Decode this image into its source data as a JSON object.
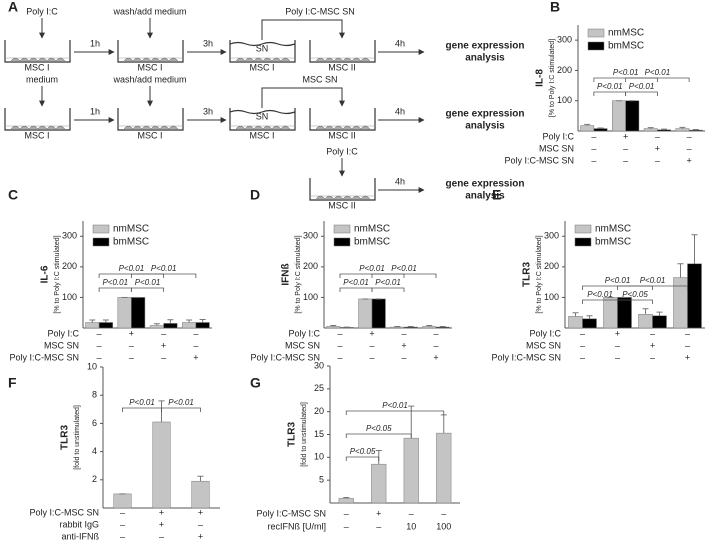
{
  "panel_labels": [
    "A",
    "B",
    "C",
    "D",
    "E",
    "F",
    "G"
  ],
  "diagram": {
    "labels": [
      "Poly I:C",
      "1h",
      "wash/add medium",
      "3h",
      "Poly I:C-MSC SN",
      "SN",
      "4h",
      "gene expression",
      "analysis",
      "MSC I",
      "MSC I",
      "MSC I",
      "MSC II",
      "medium",
      "1h",
      "wash/add medium",
      "3h",
      "MSC SN",
      "SN",
      "4h",
      "gene expression",
      "analysis",
      "MSC I",
      "MSC I",
      "MSC I",
      "MSC II",
      "Poly I:C",
      "4h",
      "gene expression",
      "analysis",
      "MSC II"
    ]
  },
  "chart_data": [
    {
      "type": "bar",
      "panel": "B",
      "ylabel": "IL-8",
      "ylabel_sub": "[% to Poly I:C stimulated]",
      "ylim": [
        0,
        350
      ],
      "yticks": [
        100,
        200,
        300
      ],
      "legend": "upper left",
      "condition_rows": [
        {
          "label": "Poly I:C",
          "marks": [
            "–",
            "+",
            "–",
            "–"
          ]
        },
        {
          "label": "MSC SN",
          "marks": [
            "–",
            "–",
            "+",
            "–"
          ]
        },
        {
          "label": "Poly I:C-MSC SN",
          "marks": [
            "–",
            "–",
            "–",
            "+"
          ]
        }
      ],
      "series": [
        {
          "name": "nmMSC",
          "color": "#c4c4c4",
          "values": [
            18,
            100,
            8,
            8
          ],
          "errors": [
            4,
            0,
            3,
            4
          ]
        },
        {
          "name": "bmMSC",
          "color": "#000000",
          "values": [
            8,
            100,
            4,
            3
          ],
          "errors": [
            2,
            0,
            2,
            2
          ]
        }
      ],
      "brackets": [
        {
          "from": 0,
          "to": 1,
          "level": 0,
          "label": "P<0.01"
        },
        {
          "from": 1,
          "to": 2,
          "level": 0,
          "label": "P<0.01"
        },
        {
          "from": 0,
          "to": 2,
          "level": 1,
          "label": "P<0.01"
        },
        {
          "from": 1,
          "to": 3,
          "level": 1,
          "label": "P<0.01"
        }
      ]
    },
    {
      "type": "bar",
      "panel": "C",
      "ylabel": "IL-6",
      "ylabel_sub": "[% to Poly I:C stimulated]",
      "ylim": [
        0,
        350
      ],
      "yticks": [
        100,
        200,
        300
      ],
      "legend": "upper left",
      "condition_rows": [
        {
          "label": "Poly I:C",
          "marks": [
            "–",
            "+",
            "–",
            "–"
          ]
        },
        {
          "label": "MSC SN",
          "marks": [
            "–",
            "–",
            "+",
            "–"
          ]
        },
        {
          "label": "Poly I:C-MSC SN",
          "marks": [
            "–",
            "–",
            "–",
            "+"
          ]
        }
      ],
      "series": [
        {
          "name": "nmMSC",
          "color": "#c4c4c4",
          "values": [
            18,
            100,
            8,
            18
          ],
          "errors": [
            8,
            0,
            6,
            8
          ]
        },
        {
          "name": "bmMSC",
          "color": "#000000",
          "values": [
            18,
            100,
            15,
            18
          ],
          "errors": [
            8,
            0,
            12,
            10
          ]
        }
      ],
      "brackets": [
        {
          "from": 0,
          "to": 1,
          "level": 0,
          "label": "P<0.01"
        },
        {
          "from": 1,
          "to": 2,
          "level": 0,
          "label": "P<0.01"
        },
        {
          "from": 0,
          "to": 2,
          "level": 1,
          "label": "P<0.01"
        },
        {
          "from": 1,
          "to": 3,
          "level": 1,
          "label": "P<0.01"
        }
      ]
    },
    {
      "type": "bar",
      "panel": "D",
      "ylabel": "IFNß",
      "ylabel_sub": "[% to Poly I:C stimulated]",
      "ylim": [
        0,
        350
      ],
      "yticks": [
        100,
        200,
        300
      ],
      "legend": "upper left",
      "condition_rows": [
        {
          "label": "Poly I:C",
          "marks": [
            "–",
            "+",
            "–",
            "–"
          ]
        },
        {
          "label": "MSC SN",
          "marks": [
            "–",
            "–",
            "+",
            "–"
          ]
        },
        {
          "label": "Poly I:C-MSC SN",
          "marks": [
            "–",
            "–",
            "–",
            "+"
          ]
        }
      ],
      "series": [
        {
          "name": "nmMSC",
          "color": "#c4c4c4",
          "values": [
            5,
            95,
            3,
            5
          ],
          "errors": [
            3,
            0,
            2,
            3
          ]
        },
        {
          "name": "bmMSC",
          "color": "#000000",
          "values": [
            2,
            95,
            3,
            3
          ],
          "errors": [
            1,
            0,
            2,
            2
          ]
        }
      ],
      "brackets": [
        {
          "from": 0,
          "to": 1,
          "level": 0,
          "label": "P<0.01"
        },
        {
          "from": 1,
          "to": 2,
          "level": 0,
          "label": "P<0.01"
        },
        {
          "from": 0,
          "to": 2,
          "level": 1,
          "label": "P<0.01"
        },
        {
          "from": 1,
          "to": 3,
          "level": 1,
          "label": "P<0.01"
        }
      ]
    },
    {
      "type": "bar",
      "panel": "E",
      "ylabel": "TLR3",
      "ylabel_sub": "[% to Poly I:C stimulated]",
      "ylim": [
        0,
        350
      ],
      "yticks": [
        100,
        200,
        300
      ],
      "legend": "upper left",
      "condition_rows": [
        {
          "label": "Poly I:C",
          "marks": [
            "–",
            "+",
            "–",
            "–"
          ]
        },
        {
          "label": "MSC SN",
          "marks": [
            "–",
            "–",
            "+",
            "–"
          ]
        },
        {
          "label": "Poly I:C-MSC SN",
          "marks": [
            "–",
            "–",
            "–",
            "+"
          ]
        }
      ],
      "series": [
        {
          "name": "nmMSC",
          "color": "#c4c4c4",
          "values": [
            38,
            100,
            45,
            165
          ],
          "errors": [
            12,
            0,
            18,
            45
          ]
        },
        {
          "name": "bmMSC",
          "color": "#000000",
          "values": [
            30,
            100,
            40,
            210
          ],
          "errors": [
            10,
            0,
            12,
            95
          ]
        }
      ],
      "brackets": [
        {
          "from": 0,
          "to": 1,
          "level": 0,
          "label": "P<0.01"
        },
        {
          "from": 1,
          "to": 2,
          "level": 0,
          "label": "P<0.05"
        },
        {
          "from": 0,
          "to": 2,
          "level": 1,
          "label": "P<0.01"
        },
        {
          "from": 1,
          "to": 3,
          "level": 1,
          "label": "P<0.01"
        }
      ]
    },
    {
      "type": "bar",
      "panel": "F",
      "ylabel": "TLR3",
      "ylabel_sub": "[fold to unstimulated]",
      "ylim": [
        0,
        10
      ],
      "yticks": [
        2,
        4,
        6,
        8,
        10
      ],
      "condition_rows": [
        {
          "label": "Poly I:C-MSC SN",
          "marks": [
            "–",
            "+",
            "+"
          ]
        },
        {
          "label": "rabbit IgG",
          "marks": [
            "–",
            "+",
            "–"
          ]
        },
        {
          "label": "anti-IFNß",
          "marks": [
            "–",
            "–",
            "+"
          ]
        }
      ],
      "series": [
        {
          "color": "#c4c4c4",
          "values": [
            1,
            6.1,
            1.9
          ],
          "errors": [
            0,
            1.5,
            0.35
          ]
        }
      ],
      "brackets": [
        {
          "from": 0,
          "to": 1,
          "level": 0,
          "label": "P<0.01"
        },
        {
          "from": 1,
          "to": 2,
          "level": 0,
          "label": "P<0.01"
        }
      ]
    },
    {
      "type": "bar",
      "panel": "G",
      "ylabel": "TLR3",
      "ylabel_sub": "[fold to unstimulated]",
      "ylim": [
        0,
        30
      ],
      "yticks": [
        5,
        10,
        15,
        20,
        25,
        30
      ],
      "condition_rows": [
        {
          "label": "Poly I:C-MSC SN",
          "marks": [
            "–",
            "+",
            "–",
            "–"
          ]
        },
        {
          "label": "recIFNß [U/ml]",
          "marks": [
            "–",
            "–",
            "10",
            "100"
          ]
        }
      ],
      "series": [
        {
          "color": "#c4c4c4",
          "values": [
            1,
            8.5,
            14.2,
            15.3
          ],
          "errors": [
            0.2,
            3,
            7,
            4
          ]
        }
      ],
      "brackets": [
        {
          "from": 0,
          "to": 1,
          "level": 0,
          "label": "P<0.05"
        },
        {
          "from": 0,
          "to": 2,
          "level": 1,
          "label": "P<0.05"
        },
        {
          "from": 0,
          "to": 3,
          "level": 2,
          "label": "P<0.01"
        }
      ]
    }
  ]
}
